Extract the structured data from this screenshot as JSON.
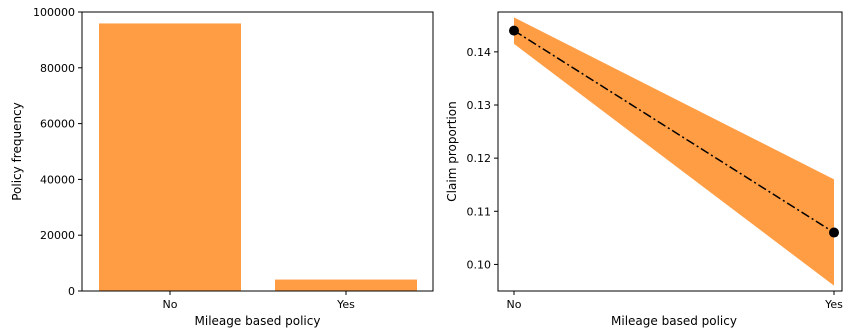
{
  "colors": {
    "bar": "#ff9d45",
    "band": "#ff9d45",
    "line": "#000000",
    "axis": "#000000"
  },
  "chart_data": [
    {
      "type": "bar",
      "categories": [
        "No",
        "Yes"
      ],
      "values": [
        95900,
        4100
      ],
      "xlabel": "Mileage based policy",
      "ylabel": "Policy frequency",
      "ylim": [
        0,
        100000
      ],
      "yticks": [
        0,
        20000,
        40000,
        60000,
        80000,
        100000
      ],
      "ytick_labels": [
        "0",
        "20000",
        "40000",
        "60000",
        "80000",
        "100000"
      ],
      "grid": false
    },
    {
      "type": "line",
      "categories": [
        "No",
        "Yes"
      ],
      "values": [
        0.144,
        0.106
      ],
      "ci_lower": [
        0.1415,
        0.096
      ],
      "ci_upper": [
        0.1465,
        0.116
      ],
      "line_style": "dash-dot",
      "marker": "circle",
      "xlabel": "Mileage based policy",
      "ylabel": "Claim proportion",
      "ylim": [
        0.095,
        0.1475
      ],
      "yticks": [
        0.1,
        0.11,
        0.12,
        0.13,
        0.14
      ],
      "ytick_labels": [
        "0.10",
        "0.11",
        "0.12",
        "0.13",
        "0.14"
      ],
      "grid": false
    }
  ]
}
